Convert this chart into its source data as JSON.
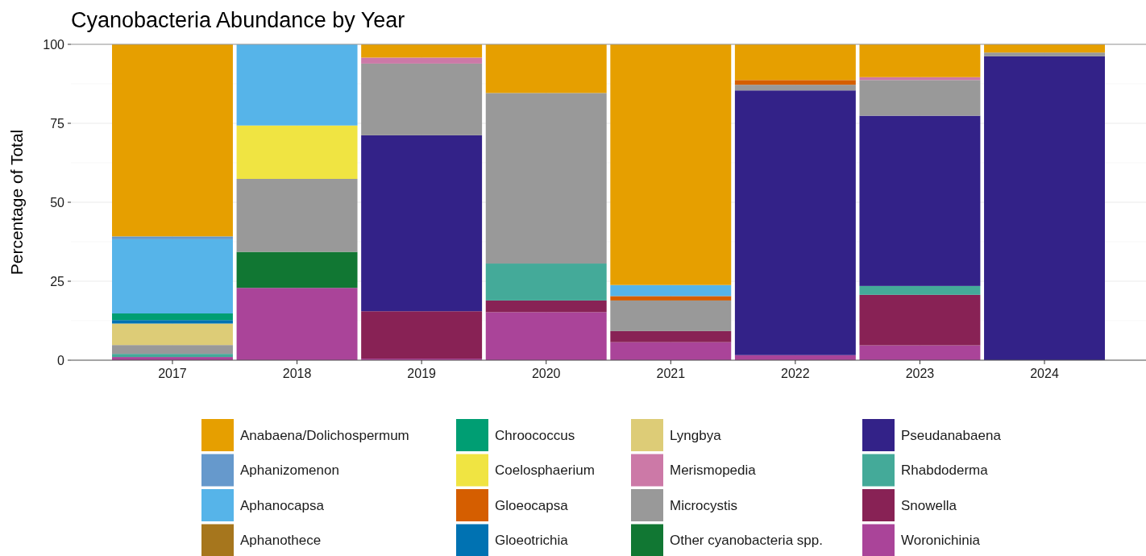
{
  "chart_data": {
    "type": "bar",
    "title": "Cyanobacteria Abundance by Year",
    "ylabel": "Percentage of Total",
    "categories": [
      "2017",
      "2018",
      "2019",
      "2020",
      "2021",
      "2022",
      "2023",
      "2024"
    ],
    "stacked": true,
    "ylim": [
      0,
      100
    ],
    "yticks": [
      0,
      25,
      50,
      75,
      100
    ],
    "grid": true,
    "legend": "bottom",
    "series": [
      {
        "name": "Woronichinia",
        "color": "#aa4499",
        "values": [
          1,
          22.9,
          0.5,
          15.2,
          5.7,
          1.6,
          4.7,
          null
        ]
      },
      {
        "name": "Snowella",
        "color": "#882255",
        "values": [
          null,
          null,
          15.0,
          3.7,
          3.5,
          null,
          16.0,
          null
        ]
      },
      {
        "name": "Rhabdoderma",
        "color": "#44aa99",
        "values": [
          1,
          null,
          null,
          11.7,
          null,
          null,
          2.8,
          null
        ]
      },
      {
        "name": "Pseudanabaena",
        "color": "#332288",
        "values": [
          null,
          null,
          55.7,
          null,
          null,
          83.8,
          53.9,
          96.2
        ]
      },
      {
        "name": "Other cyanobacteria spp.",
        "color": "#117733",
        "values": [
          null,
          11.4,
          null,
          null,
          null,
          null,
          null,
          null
        ]
      },
      {
        "name": "Microcystis",
        "color": "#999999",
        "values": [
          2.8,
          23.1,
          22.7,
          54.0,
          9.7,
          1.8,
          11.3,
          1.2
        ]
      },
      {
        "name": "Merismopedia",
        "color": "#cc79a7",
        "values": [
          null,
          null,
          1.9,
          null,
          null,
          null,
          0.9,
          null
        ]
      },
      {
        "name": "Lyngbya",
        "color": "#ddcc77",
        "values": [
          6.8,
          null,
          null,
          null,
          null,
          null,
          null,
          null
        ]
      },
      {
        "name": "Gloeotrichia",
        "color": "#0072b2",
        "values": [
          1.1,
          null,
          null,
          null,
          null,
          null,
          null,
          null
        ]
      },
      {
        "name": "Gloeocapsa",
        "color": "#d55e00",
        "values": [
          null,
          null,
          null,
          null,
          1.4,
          1.5,
          null,
          null
        ]
      },
      {
        "name": "Coelosphaerium",
        "color": "#f0e442",
        "values": [
          null,
          16.9,
          null,
          null,
          null,
          null,
          null,
          null
        ]
      },
      {
        "name": "Chroococcus",
        "color": "#009e73",
        "values": [
          2.1,
          null,
          null,
          null,
          null,
          null,
          null,
          null
        ]
      },
      {
        "name": "Aphanothece",
        "color": "#a6761d",
        "values": [
          null,
          null,
          null,
          null,
          null,
          null,
          null,
          null
        ]
      },
      {
        "name": "Aphanocapsa",
        "color": "#56b4e9",
        "values": [
          23.5,
          25.7,
          null,
          null,
          3.5,
          null,
          null,
          null
        ]
      },
      {
        "name": "Aphanizomenon",
        "color": "#6699cc",
        "values": [
          0.9,
          null,
          null,
          null,
          null,
          null,
          null,
          null
        ]
      },
      {
        "name": "Anabaena/Dolichospermum",
        "color": "#e69f00",
        "values": [
          60.8,
          null,
          4.2,
          15.4,
          76.2,
          11.3,
          10.4,
          2.6
        ]
      }
    ]
  }
}
